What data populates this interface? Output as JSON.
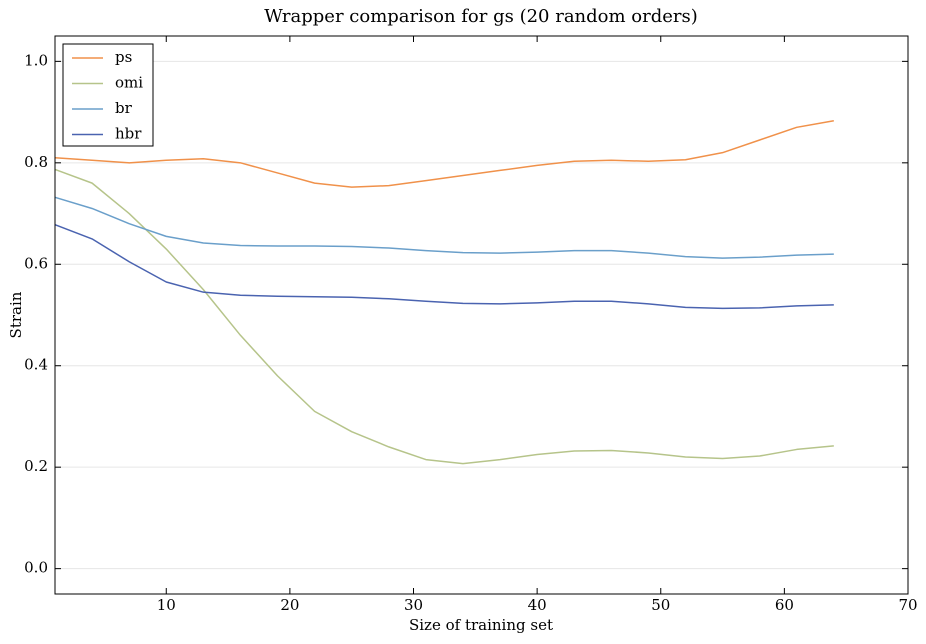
{
  "chart_data": {
    "type": "line",
    "title": "Wrapper comparison for gs (20 random orders)",
    "x_label": "Size of training set",
    "y_label": "Strain",
    "x": [
      1,
      4,
      7,
      10,
      13,
      16,
      19,
      22,
      25,
      28,
      31,
      34,
      37,
      40,
      43,
      46,
      49,
      52,
      55,
      58,
      61,
      64
    ],
    "series": [
      {
        "name": "ps",
        "color": "#f0914a",
        "values": [
          0.81,
          0.805,
          0.8,
          0.805,
          0.808,
          0.8,
          0.78,
          0.76,
          0.752,
          0.755,
          0.765,
          0.775,
          0.785,
          0.795,
          0.803,
          0.805,
          0.803,
          0.806,
          0.82,
          0.845,
          0.87,
          0.883
        ]
      },
      {
        "name": "omi",
        "color": "#b6c48a",
        "values": [
          0.787,
          0.76,
          0.7,
          0.63,
          0.55,
          0.46,
          0.38,
          0.31,
          0.27,
          0.24,
          0.215,
          0.207,
          0.215,
          0.225,
          0.232,
          0.233,
          0.228,
          0.22,
          0.217,
          0.222,
          0.235,
          0.242
        ]
      },
      {
        "name": "br",
        "color": "#6a9fca",
        "values": [
          0.732,
          0.71,
          0.68,
          0.655,
          0.642,
          0.637,
          0.636,
          0.636,
          0.635,
          0.632,
          0.627,
          0.623,
          0.622,
          0.624,
          0.627,
          0.627,
          0.622,
          0.615,
          0.612,
          0.614,
          0.618,
          0.62
        ]
      },
      {
        "name": "hbr",
        "color": "#4a63b0",
        "values": [
          0.678,
          0.65,
          0.605,
          0.565,
          0.545,
          0.539,
          0.537,
          0.536,
          0.535,
          0.532,
          0.527,
          0.523,
          0.522,
          0.524,
          0.527,
          0.527,
          0.522,
          0.515,
          0.513,
          0.514,
          0.518,
          0.52
        ]
      }
    ],
    "xlim": [
      1,
      70
    ],
    "ylim": [
      -0.05,
      1.05
    ],
    "xticks": [
      10,
      20,
      30,
      40,
      50,
      60,
      70
    ],
    "yticks": [
      {
        "value": 0,
        "label": "0.0"
      },
      0.2,
      0.4,
      0.6,
      0.8,
      {
        "value": 1,
        "label": "1.0"
      }
    ],
    "grid": true,
    "legend": "upper left"
  }
}
